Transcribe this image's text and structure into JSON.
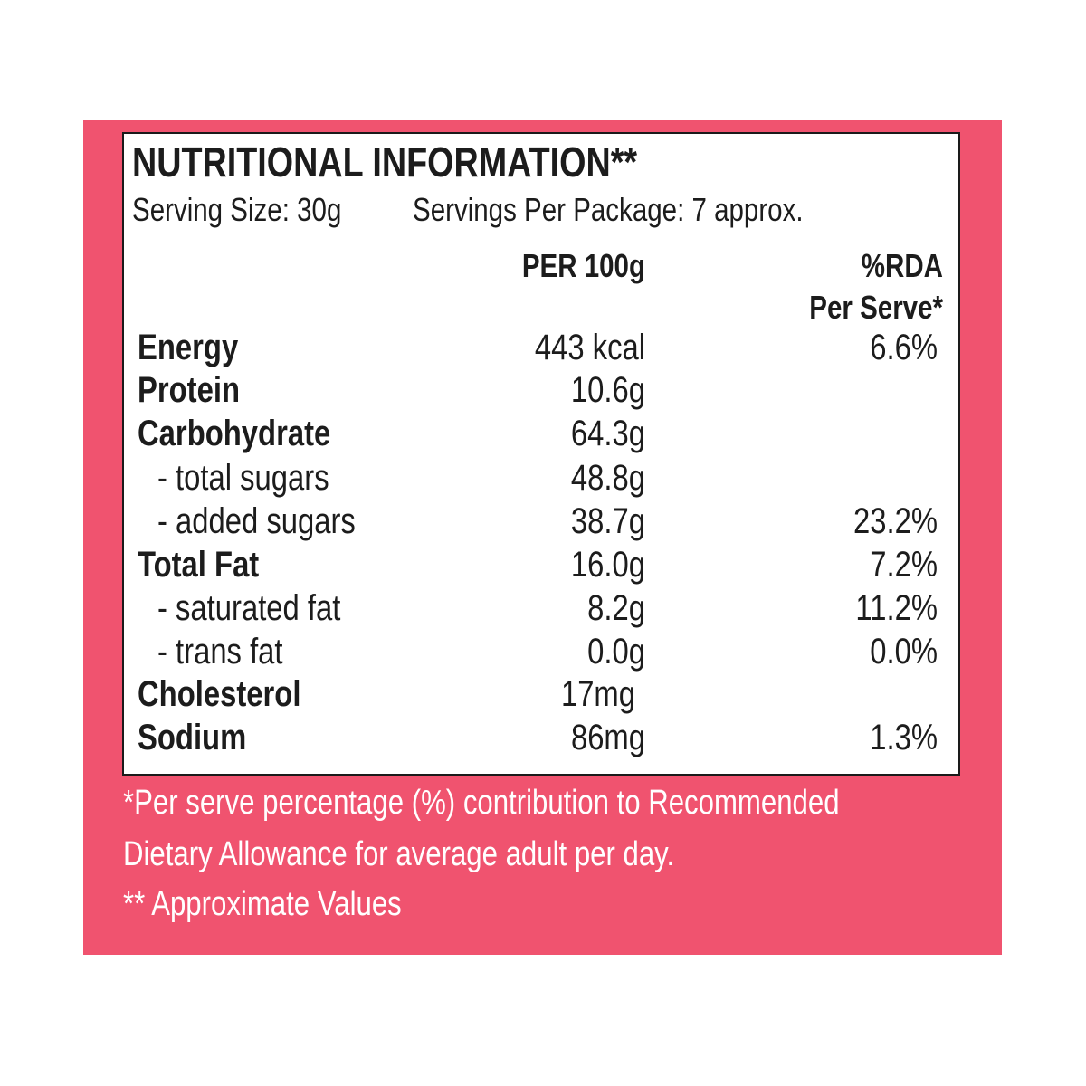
{
  "colors": {
    "panel_bg": "#f0536f",
    "table_bg": "#ffffff",
    "text": "#1c1c1c",
    "footnote_text": "#ffffff"
  },
  "title": "NUTRITIONAL INFORMATION**",
  "serving_size": "Serving Size: 30g",
  "servings_per_package": "Servings Per Package: 7 approx.",
  "headers": {
    "per_100g": "PER 100g",
    "rda_line1": "%RDA",
    "rda_line2": "Per Serve*"
  },
  "rows": [
    {
      "label": "Energy",
      "per_100g": "443 kcal",
      "rda": "6.6%"
    },
    {
      "label": "Protein",
      "per_100g": "10.6g",
      "rda": ""
    },
    {
      "label": "Carbohydrate",
      "per_100g": "64.3g",
      "rda": ""
    },
    {
      "label": "- total sugars",
      "per_100g": "48.8g",
      "rda": ""
    },
    {
      "label": "- added sugars",
      "per_100g": "38.7g",
      "rda": "23.2%"
    },
    {
      "label": "Total Fat",
      "per_100g": "16.0g",
      "rda": "7.2%"
    },
    {
      "label": "- saturated fat",
      "per_100g": "8.2g",
      "rda": "11.2%"
    },
    {
      "label": "- trans fat",
      "per_100g": "0.0g",
      "rda": "0.0%"
    },
    {
      "label": "Cholesterol",
      "per_100g": "17mg",
      "rda": ""
    },
    {
      "label": "Sodium",
      "per_100g": "86mg",
      "rda": "1.3%"
    }
  ],
  "footnotes": [
    "*Per serve percentage (%) contribution to Recommended",
    "Dietary Allowance for average adult per day.",
    "** Approximate Values"
  ]
}
